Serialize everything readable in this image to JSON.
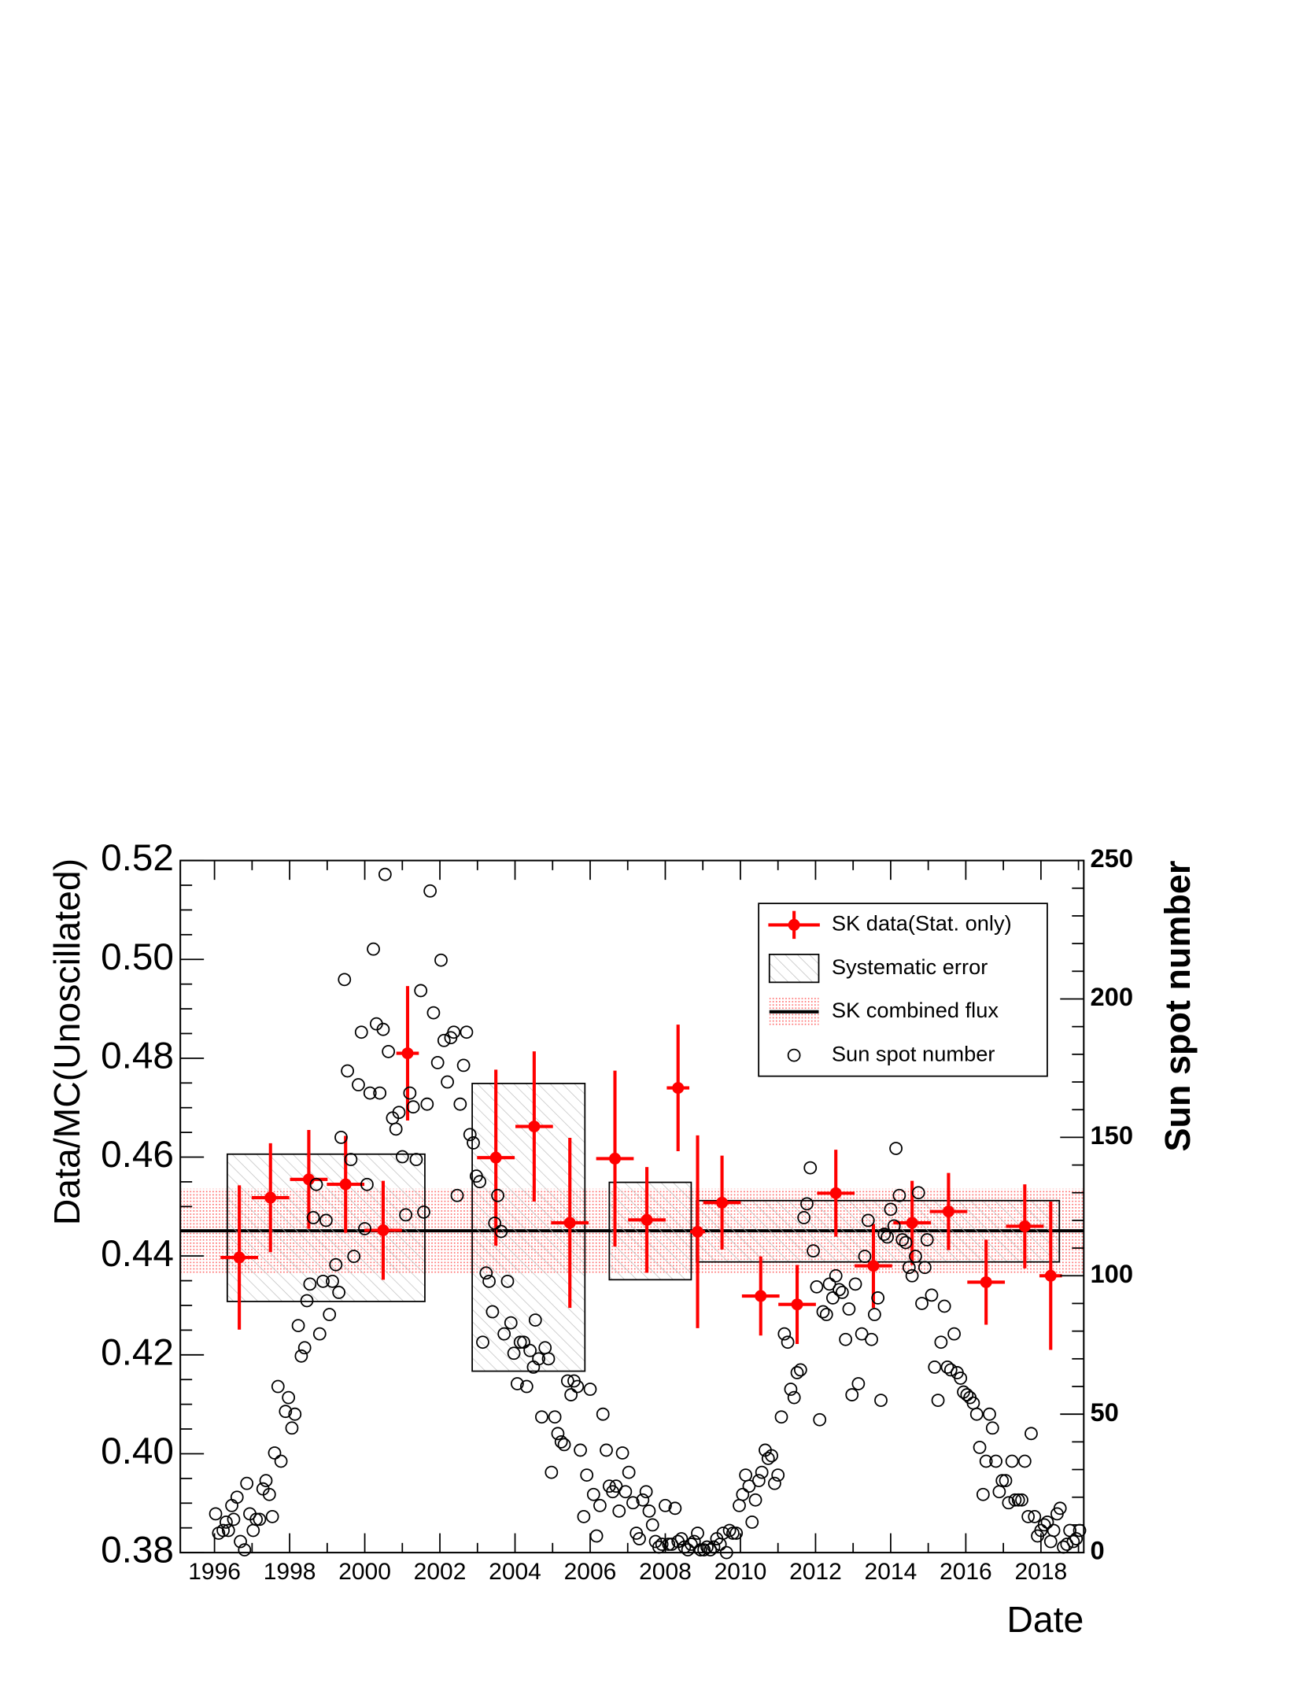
{
  "chart_data": {
    "type": "scatter",
    "xlabel": "Date",
    "ylabel": "Data/MC(Unoscillated)",
    "y2label": "Sun spot number",
    "xlim": [
      1995.09,
      2019.14
    ],
    "xticks": [
      1996,
      1998,
      2000,
      2002,
      2004,
      2006,
      2008,
      2010,
      2012,
      2014,
      2016,
      2018
    ],
    "ylim": [
      0.38,
      0.52
    ],
    "yticks": [
      0.38,
      {
        "value": 0.4,
        "label": "0.40"
      },
      0.42,
      0.44,
      0.46,
      0.48,
      {
        "value": 0.5,
        "label": "0.50"
      },
      0.52
    ],
    "y2lim": [
      0,
      250
    ],
    "y2ticks": [
      0,
      50,
      100,
      150,
      200,
      250
    ],
    "legend": "top-right",
    "series": [
      {
        "name": "SK data(Stat. only)",
        "color": "#ff0000",
        "x": [
          1996.66,
          1997.49,
          1998.51,
          1999.49,
          2000.49,
          2001.14,
          2003.49,
          2004.51,
          2005.46,
          2006.66,
          2007.51,
          2008.34,
          2008.86,
          2009.51,
          2010.54,
          2011.51,
          2012.54,
          2013.54,
          2014.57,
          2015.54,
          2016.54,
          2017.57,
          2018.26
        ],
        "values": [
          0.4397,
          0.4518,
          0.4555,
          0.4545,
          0.4452,
          0.481,
          0.4599,
          0.4662,
          0.4467,
          0.4597,
          0.4473,
          0.474,
          0.4449,
          0.4508,
          0.4319,
          0.4302,
          0.4527,
          0.438,
          0.4467,
          0.449,
          0.4347,
          0.446,
          0.436
        ],
        "xerr": [
          0.5,
          0.5,
          0.5,
          0.5,
          0.5,
          0.3,
          0.5,
          0.5,
          0.5,
          0.5,
          0.5,
          0.3,
          0.2,
          0.5,
          0.5,
          0.5,
          0.5,
          0.5,
          0.5,
          0.5,
          0.5,
          0.5,
          0.3
        ],
        "yerr": [
          0.0146,
          0.011,
          0.01,
          0.0098,
          0.01,
          0.0136,
          0.0178,
          0.0152,
          0.0172,
          0.0178,
          0.0107,
          0.0128,
          0.0195,
          0.0095,
          0.008,
          0.008,
          0.0088,
          0.0085,
          0.0085,
          0.0078,
          0.0086,
          0.0085,
          0.015
        ]
      },
      {
        "name": "Sun spot number",
        "color": "#000000",
        "axis": "y2",
        "x": [
          1996.03,
          1996.11,
          1996.23,
          1996.31,
          1996.37,
          1996.46,
          1996.51,
          1996.6,
          1996.69,
          1996.8,
          1996.86,
          1996.94,
          1997.03,
          1997.11,
          1997.2,
          1997.29,
          1997.37,
          1997.46,
          1997.54,
          1997.6,
          1997.69,
          1997.77,
          1997.89,
          1997.97,
          1998.06,
          1998.14,
          1998.23,
          1998.31,
          1998.4,
          1998.46,
          1998.54,
          1998.63,
          1998.71,
          1998.8,
          1998.89,
          1998.97,
          1999.06,
          1999.14,
          1999.23,
          1999.31,
          1999.37,
          1999.46,
          1999.54,
          1999.63,
          1999.71,
          1999.83,
          1999.91,
          2000,
          2000.06,
          2000.14,
          2000.23,
          2000.31,
          2000.4,
          2000.49,
          2000.54,
          2000.63,
          2000.74,
          2000.83,
          2000.91,
          2001,
          2001.09,
          2001.2,
          2001.29,
          2001.37,
          2001.49,
          2001.57,
          2001.66,
          2001.74,
          2001.83,
          2001.94,
          2002.03,
          2002.11,
          2002.2,
          2002.29,
          2002.37,
          2002.46,
          2002.54,
          2002.63,
          2002.71,
          2002.8,
          2002.89,
          2002.97,
          2003.06,
          2003.14,
          2003.23,
          2003.31,
          2003.4,
          2003.46,
          2003.54,
          2003.63,
          2003.71,
          2003.8,
          2003.89,
          2003.97,
          2004.06,
          2004.14,
          2004.23,
          2004.31,
          2004.4,
          2004.49,
          2004.54,
          2004.63,
          2004.71,
          2004.8,
          2004.89,
          2004.97,
          2005.06,
          2005.14,
          2005.23,
          2005.31,
          2005.4,
          2005.49,
          2005.57,
          2005.66,
          2005.74,
          2005.83,
          2005.91,
          2006,
          2006.09,
          2006.17,
          2006.26,
          2006.34,
          2006.43,
          2006.51,
          2006.6,
          2006.69,
          2006.77,
          2006.86,
          2006.94,
          2007.03,
          2007.14,
          2007.23,
          2007.31,
          2007.4,
          2007.49,
          2007.57,
          2007.66,
          2007.74,
          2007.83,
          2007.91,
          2008,
          2008.09,
          2008.17,
          2008.26,
          2008.34,
          2008.43,
          2008.51,
          2008.6,
          2008.69,
          2008.77,
          2008.86,
          2008.94,
          2009.03,
          2009.11,
          2009.2,
          2009.29,
          2009.37,
          2009.46,
          2009.54,
          2009.63,
          2009.71,
          2009.8,
          2009.89,
          2009.97,
          2010.06,
          2010.14,
          2010.23,
          2010.31,
          2010.4,
          2010.49,
          2010.57,
          2010.66,
          2010.74,
          2010.83,
          2010.91,
          2011,
          2011.09,
          2011.17,
          2011.26,
          2011.34,
          2011.43,
          2011.51,
          2011.6,
          2011.69,
          2011.77,
          2011.86,
          2011.94,
          2012.03,
          2012.11,
          2012.2,
          2012.29,
          2012.37,
          2012.46,
          2012.54,
          2012.63,
          2012.71,
          2012.8,
          2012.89,
          2012.97,
          2013.06,
          2013.14,
          2013.23,
          2013.31,
          2013.4,
          2013.49,
          2013.57,
          2013.66,
          2013.74,
          2013.83,
          2013.91,
          2014,
          2014.09,
          2014.14,
          2014.23,
          2014.31,
          2014.4,
          2014.49,
          2014.57,
          2014.66,
          2014.74,
          2014.83,
          2014.91,
          2014.97,
          2015.09,
          2015.17,
          2015.26,
          2015.34,
          2015.43,
          2015.51,
          2015.6,
          2015.69,
          2015.77,
          2015.86,
          2015.94,
          2016.03,
          2016.11,
          2016.2,
          2016.29,
          2016.37,
          2016.46,
          2016.54,
          2016.63,
          2016.71,
          2016.8,
          2016.89,
          2016.97,
          2017.06,
          2017.14,
          2017.23,
          2017.31,
          2017.4,
          2017.49,
          2017.57,
          2017.66,
          2017.74,
          2017.83,
          2017.91,
          2018,
          2018.09,
          2018.17,
          2018.26,
          2018.34,
          2018.43,
          2018.51,
          2018.6,
          2018.69,
          2018.77,
          2018.86,
          2018.94,
          2019.03
        ],
        "values": [
          14,
          7,
          8,
          11,
          8,
          17,
          12,
          20,
          4,
          1,
          25,
          14,
          8,
          12,
          12,
          23,
          26,
          21,
          13,
          36,
          60,
          33,
          51,
          56,
          45,
          50,
          82,
          71,
          74,
          91,
          97,
          121,
          133,
          79,
          98,
          120,
          86,
          98,
          104,
          94,
          150,
          207,
          174,
          142,
          107,
          169,
          188,
          117,
          133,
          166,
          218,
          191,
          166,
          189,
          245,
          181,
          157,
          153,
          159,
          143,
          122,
          166,
          161,
          142,
          203,
          123,
          162,
          239,
          195,
          177,
          214,
          185,
          170,
          186,
          188,
          129,
          162,
          176,
          188,
          151,
          148,
          136,
          134,
          76,
          101,
          98,
          87,
          119,
          129,
          116,
          79,
          98,
          83,
          72,
          61,
          76,
          76,
          60,
          73,
          67,
          84,
          70,
          49,
          74,
          70,
          29,
          49,
          43,
          40,
          39,
          62,
          57,
          62,
          60,
          37,
          13,
          28,
          59,
          21,
          6,
          17,
          50,
          37,
          24,
          22,
          24,
          15,
          36,
          22,
          29,
          18,
          7,
          5,
          19,
          22,
          15,
          10,
          4,
          2,
          3,
          17,
          3,
          3,
          16,
          4,
          5,
          2,
          1,
          3,
          4,
          7,
          1,
          1,
          2,
          1,
          2,
          5,
          3,
          7,
          0,
          8,
          7,
          7,
          17,
          21,
          28,
          24,
          11,
          19,
          26,
          29,
          37,
          34,
          35,
          25,
          28,
          49,
          79,
          76,
          59,
          56,
          65,
          66,
          121,
          126,
          139,
          109,
          96,
          48,
          87,
          86,
          97,
          92,
          100,
          95,
          94,
          77,
          88,
          57,
          97,
          61,
          79,
          107,
          120,
          77,
          86,
          92,
          55,
          115,
          114,
          124,
          118,
          146,
          129,
          113,
          112,
          103,
          100,
          107,
          130,
          90,
          103,
          113,
          93,
          67,
          55,
          76,
          89,
          67,
          66,
          79,
          65,
          63,
          58,
          57,
          56,
          54,
          50,
          38,
          21,
          33,
          50,
          45,
          33,
          22,
          26,
          26,
          18,
          33,
          19,
          19,
          19,
          33,
          13,
          43,
          13,
          6,
          8,
          10,
          11,
          4,
          8,
          14,
          16,
          2,
          3,
          8,
          4,
          5,
          8
        ]
      }
    ],
    "systematic": {
      "name": "Systematic error",
      "color": "#000000",
      "x0": [
        1996.34,
        2002.86,
        2006.51,
        2008.83
      ],
      "x1": [
        2001.6,
        2005.86,
        2008.69,
        2018.49
      ],
      "low": [
        0.4308,
        0.4167,
        0.4352,
        0.4388
      ],
      "high": [
        0.4606,
        0.4749,
        0.4549,
        0.4512
      ]
    },
    "combined": {
      "name": "SK combined flux",
      "color": "#000000",
      "band_color": "#ff0000",
      "value": 0.4451,
      "low": 0.4365,
      "high": 0.4536
    }
  }
}
